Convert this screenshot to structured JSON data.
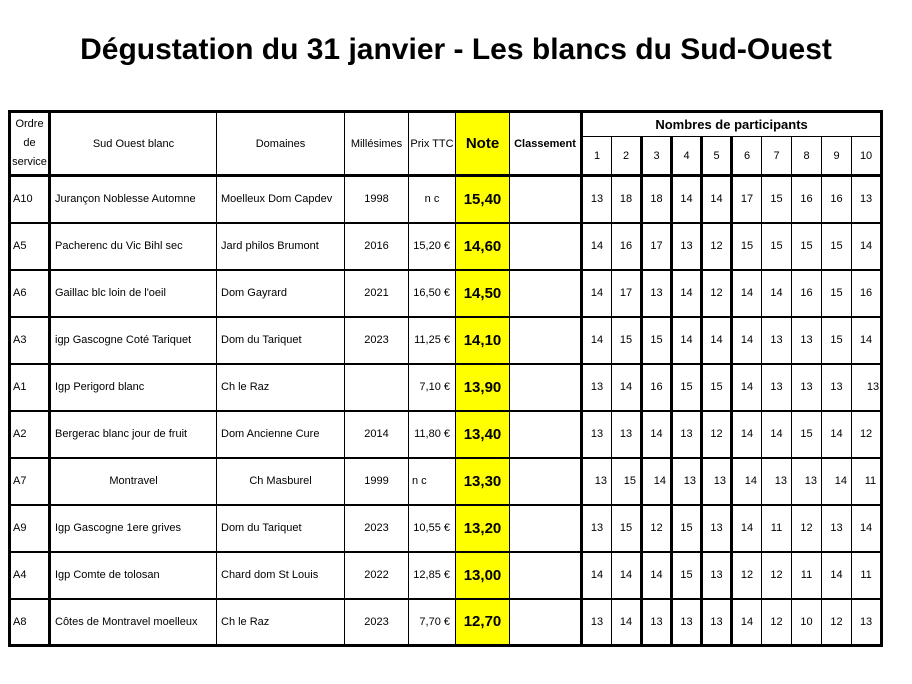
{
  "title": "Dégustation du 31 janvier - Les blancs du Sud-Ouest",
  "colors": {
    "note_highlight": "#FFFF00",
    "border": "#000000",
    "text": "#000000",
    "background": "#FFFFFF"
  },
  "table": {
    "headers": {
      "ordre": "Ordre de service",
      "wine": "Sud Ouest blanc",
      "domaine": "Domaines",
      "millesime": "Millésimes",
      "prix": "Prix TTC",
      "note": "Note",
      "classement": "Classement",
      "participants_group": "Nombres de participants",
      "participant_cols": [
        "1",
        "2",
        "3",
        "4",
        "5",
        "6",
        "7",
        "8",
        "9",
        "10"
      ]
    },
    "rows": [
      {
        "ordre": "A10",
        "wine": "Jurançon Noblesse Automne",
        "domaine": "Moelleux Dom Capdev",
        "millesime": "1998",
        "prix": "n c",
        "note": "15,40",
        "classement": "",
        "participants": [
          13,
          18,
          18,
          14,
          14,
          17,
          15,
          16,
          16,
          13
        ]
      },
      {
        "ordre": "A5",
        "wine": "Pacherenc du Vic Bihl sec",
        "domaine": "Jard philos Brumont",
        "millesime": "2016",
        "prix": "15,20 €",
        "note": "14,60",
        "classement": "",
        "participants": [
          14,
          16,
          17,
          13,
          12,
          15,
          15,
          15,
          15,
          14
        ]
      },
      {
        "ordre": "A6",
        "wine": "Gaillac blc loin de l'oeil",
        "domaine": "Dom Gayrard",
        "millesime": "2021",
        "prix": "16,50 €",
        "note": "14,50",
        "classement": "",
        "participants": [
          14,
          17,
          13,
          14,
          12,
          14,
          14,
          16,
          15,
          16
        ]
      },
      {
        "ordre": "A3",
        "wine": "igp Gascogne Coté Tariquet",
        "domaine": "Dom du Tariquet",
        "millesime": "2023",
        "prix": "11,25 €",
        "note": "14,10",
        "classement": "",
        "participants": [
          14,
          15,
          15,
          14,
          14,
          14,
          13,
          13,
          15,
          14
        ]
      },
      {
        "ordre": "A1",
        "wine": "Igp Perigord blanc",
        "domaine": "Ch le Raz",
        "millesime": "",
        "prix": "7,10 €",
        "note": "13,90",
        "classement": "",
        "participants": [
          13,
          14,
          16,
          15,
          15,
          14,
          13,
          13,
          13,
          13
        ]
      },
      {
        "ordre": "A2",
        "wine": "Bergerac blanc jour de fruit",
        "domaine": "Dom Ancienne Cure",
        "millesime": "2014",
        "prix": "11,80 €",
        "note": "13,40",
        "classement": "",
        "participants": [
          13,
          13,
          14,
          13,
          12,
          14,
          14,
          15,
          14,
          12
        ]
      },
      {
        "ordre": "A7",
        "wine": "Montravel",
        "domaine": "Ch Masburel",
        "millesime": "1999",
        "prix": "n c",
        "note": "13,30",
        "classement": "",
        "participants": [
          13,
          15,
          14,
          13,
          13,
          14,
          13,
          13,
          14,
          11
        ]
      },
      {
        "ordre": "A9",
        "wine": "Igp Gascogne 1ere grives",
        "domaine": "Dom du Tariquet",
        "millesime": "2023",
        "prix": "10,55 €",
        "note": "13,20",
        "classement": "",
        "participants": [
          13,
          15,
          12,
          15,
          13,
          14,
          11,
          12,
          13,
          14
        ]
      },
      {
        "ordre": "A4",
        "wine": "Igp Comte de tolosan",
        "domaine": "Chard dom St Louis",
        "millesime": "2022",
        "prix": "12,85 €",
        "note": "13,00",
        "classement": "",
        "participants": [
          14,
          14,
          14,
          15,
          13,
          12,
          12,
          11,
          14,
          11
        ]
      },
      {
        "ordre": "A8",
        "wine": "Côtes de Montravel moelleux",
        "domaine": "Ch le Raz",
        "millesime": "2023",
        "prix": "7,70 €",
        "note": "12,70",
        "classement": "",
        "participants": [
          13,
          14,
          13,
          13,
          13,
          14,
          12,
          10,
          12,
          13
        ]
      }
    ]
  }
}
